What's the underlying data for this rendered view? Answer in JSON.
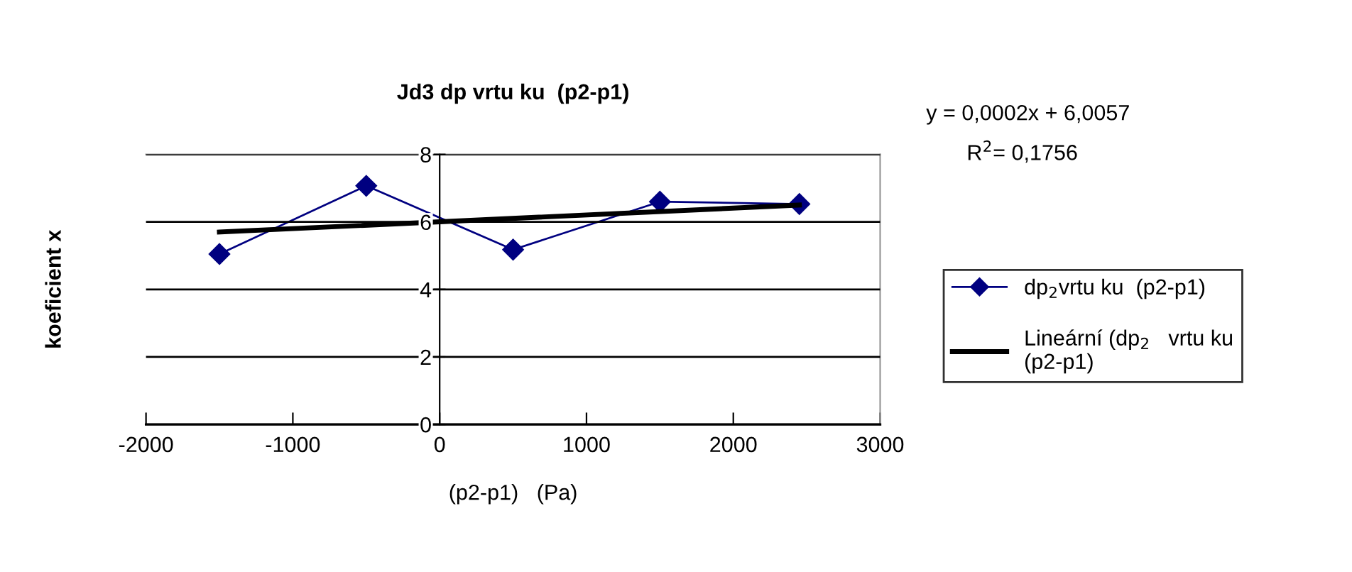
{
  "chart_data": {
    "type": "line",
    "title": "Jd3 dp vrtu ku  (p2-p1)",
    "xlabel": "(p2-p1)   (Pa)",
    "ylabel": "koeficient x",
    "annotations": [
      "y = 0,0002x + 6,0057",
      "R$^{2}$= 0,1756"
    ],
    "x": [
      -1500,
      -500,
      500,
      1500,
      2450
    ],
    "series": [
      {
        "name": "dp$_{2}$vrtu ku  (p2-p1)",
        "color": "#000080",
        "values": [
          5.05,
          7.07,
          5.18,
          6.6,
          6.53
        ],
        "marker": "diamond"
      },
      {
        "name": "Lineární (dp$_{2}$   vrtu ku\n(p2-p1)",
        "color": "#000000",
        "type": "line",
        "x": [
          -1500,
          2450
        ],
        "values": [
          5.7,
          6.5
        ],
        "marker": "none"
      }
    ],
    "xlim": [
      -2000,
      3000
    ],
    "xticks": [
      -2000,
      -1000,
      0,
      1000,
      2000,
      3000
    ],
    "ylim": [
      0,
      8
    ],
    "yticks": [
      0,
      2,
      4,
      6,
      8
    ],
    "grid": "y",
    "legend": "right"
  }
}
